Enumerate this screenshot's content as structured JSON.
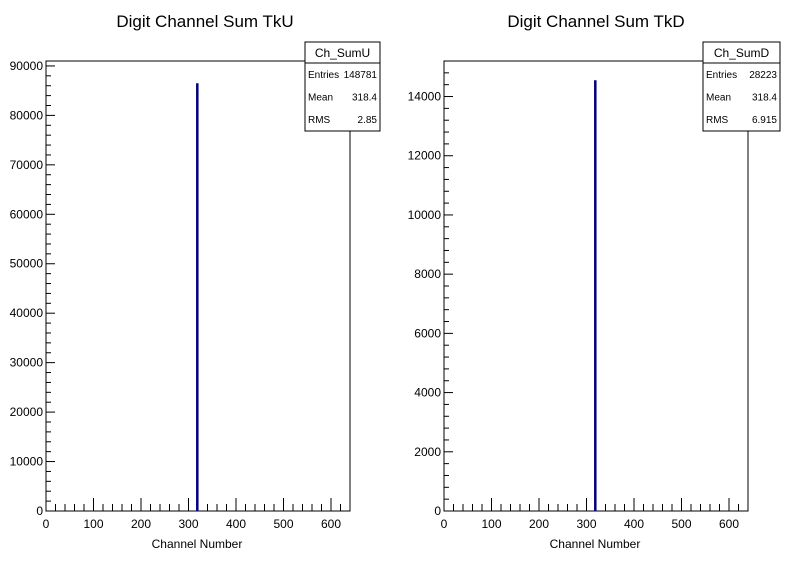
{
  "chart_data": [
    {
      "type": "bar",
      "title": "Digit Channel Sum TkU",
      "xlabel": "Channel Number",
      "ylabel": "",
      "xlim": [
        0,
        640
      ],
      "ylim": [
        0,
        91000
      ],
      "x_ticks": [
        "0",
        "100",
        "200",
        "300",
        "400",
        "500",
        "600"
      ],
      "y_ticks": [
        "0",
        "10000",
        "20000",
        "30000",
        "40000",
        "50000",
        "60000",
        "70000",
        "80000",
        "90000"
      ],
      "x_tick_values": [
        0,
        100,
        200,
        300,
        400,
        500,
        600
      ],
      "y_tick_values": [
        0,
        10000,
        20000,
        30000,
        40000,
        50000,
        60000,
        70000,
        80000,
        90000
      ],
      "bars": [
        {
          "x": 318,
          "y": 86500
        }
      ],
      "stats": {
        "name": "Ch_SumU",
        "rows": [
          {
            "label": "Entries",
            "value": "148781"
          },
          {
            "label": "Mean",
            "value": "318.4"
          },
          {
            "label": "RMS",
            "value": "2.85"
          }
        ]
      },
      "color": "#000080"
    },
    {
      "type": "bar",
      "title": "Digit Channel Sum TkD",
      "xlabel": "Channel Number",
      "ylabel": "",
      "xlim": [
        0,
        640
      ],
      "ylim": [
        0,
        15200
      ],
      "x_ticks": [
        "0",
        "100",
        "200",
        "300",
        "400",
        "500",
        "600"
      ],
      "y_ticks": [
        "0",
        "2000",
        "4000",
        "6000",
        "8000",
        "10000",
        "12000",
        "14000"
      ],
      "x_tick_values": [
        0,
        100,
        200,
        300,
        400,
        500,
        600
      ],
      "y_tick_values": [
        0,
        2000,
        4000,
        6000,
        8000,
        10000,
        12000,
        14000
      ],
      "bars": [
        {
          "x": 318,
          "y": 14550
        }
      ],
      "stats": {
        "name": "Ch_SumD",
        "rows": [
          {
            "label": "Entries",
            "value": "28223"
          },
          {
            "label": "Mean",
            "value": "318.4"
          },
          {
            "label": "RMS",
            "value": "6.915"
          }
        ]
      },
      "color": "#000080"
    }
  ]
}
